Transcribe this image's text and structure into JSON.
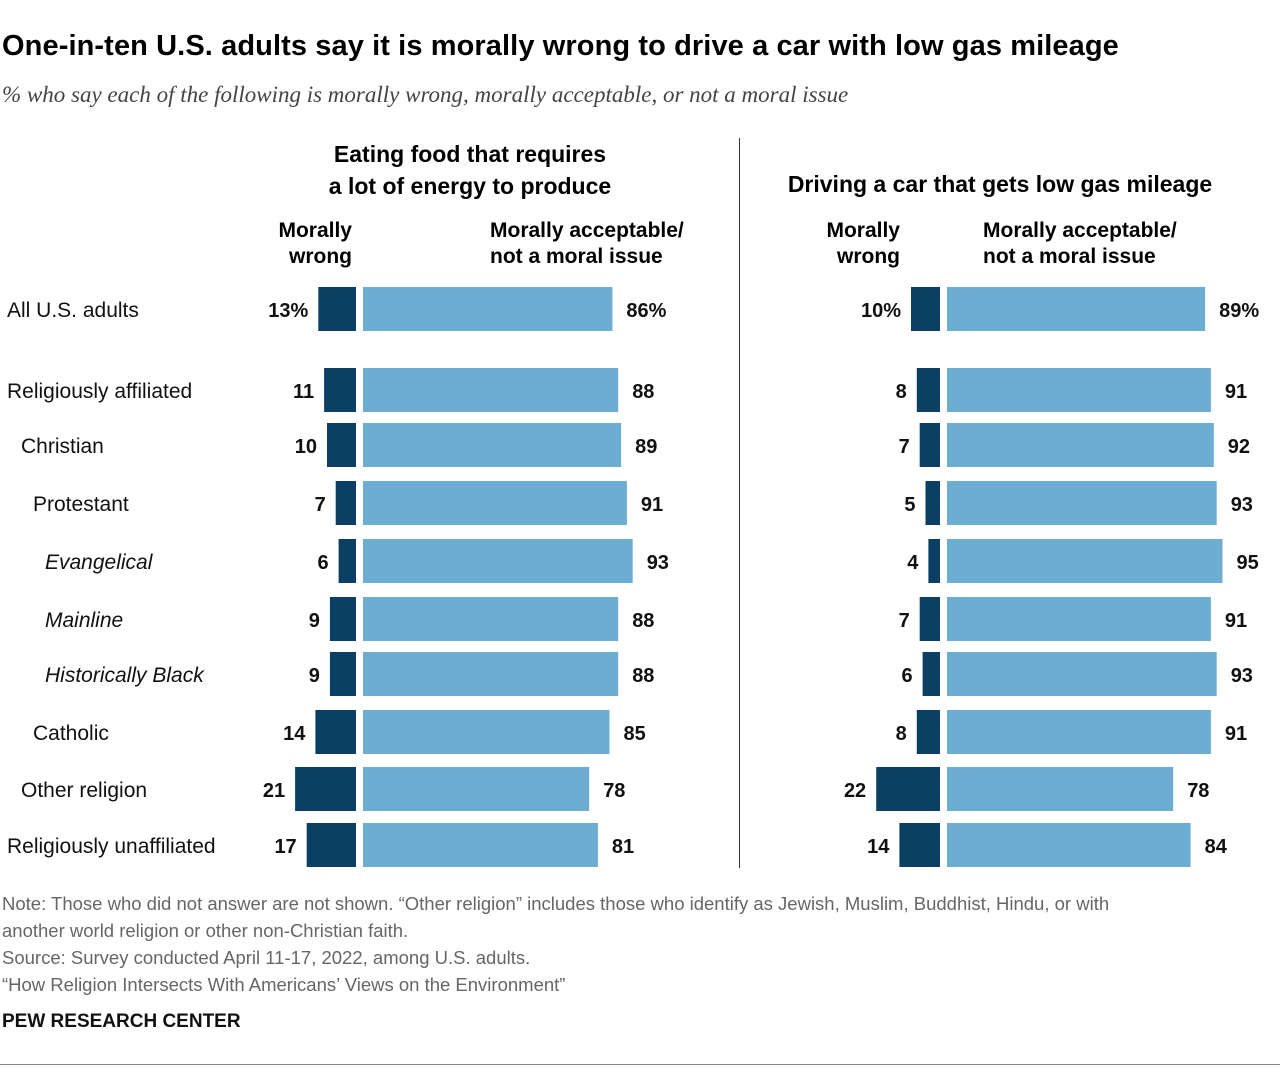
{
  "title": "One-in-ten U.S. adults say it is morally wrong to drive a car with low gas mileage",
  "subtitle": "% who say each of the following is morally wrong, morally acceptable, or not a moral issue",
  "panels": [
    {
      "title_line1": "Eating food that requires",
      "title_line2": "a lot of energy to produce",
      "head_wrong_1": "Morally",
      "head_wrong_2": "wrong",
      "head_ok_1": "Morally acceptable/",
      "head_ok_2": "not a moral issue"
    },
    {
      "title_line1": "Driving a car that gets low gas mileage",
      "title_line2": "",
      "head_wrong_1": "Morally",
      "head_wrong_2": "wrong",
      "head_ok_1": "Morally acceptable/",
      "head_ok_2": "not a moral issue"
    }
  ],
  "colors": {
    "wrong": "#0b4064",
    "acceptable": "#6dadd1"
  },
  "chart_data": {
    "type": "bar",
    "categories": [
      "All U.S. adults",
      "Religiously affiliated",
      "Christian",
      "Protestant",
      "Evangelical",
      "Mainline",
      "Historically Black",
      "Catholic",
      "Other religion",
      "Religiously unaffiliated"
    ],
    "panels": [
      {
        "title": "Eating food that requires a lot of energy to produce",
        "series": [
          {
            "name": "Morally wrong",
            "values": [
              13,
              11,
              10,
              7,
              6,
              9,
              9,
              14,
              21,
              17
            ]
          },
          {
            "name": "Morally acceptable/not a moral issue",
            "values": [
              86,
              88,
              89,
              91,
              93,
              88,
              88,
              85,
              78,
              81
            ]
          }
        ]
      },
      {
        "title": "Driving a car that gets low gas mileage",
        "series": [
          {
            "name": "Morally wrong",
            "values": [
              10,
              8,
              7,
              5,
              4,
              7,
              6,
              8,
              22,
              14
            ]
          },
          {
            "name": "Morally acceptable/not a moral issue",
            "values": [
              89,
              91,
              92,
              93,
              95,
              91,
              93,
              91,
              78,
              84
            ]
          }
        ]
      }
    ],
    "value_labels": {
      "panel1_wrong": [
        "13%",
        "11",
        "10",
        "7",
        "6",
        "9",
        "9",
        "14",
        "21",
        "17"
      ],
      "panel1_ok": [
        "86%",
        "88",
        "89",
        "91",
        "93",
        "88",
        "88",
        "85",
        "78",
        "81"
      ],
      "panel2_wrong": [
        "10%",
        "8",
        "7",
        "5",
        "4",
        "7",
        "6",
        "8",
        "22",
        "14"
      ],
      "panel2_ok": [
        "89%",
        "91",
        "92",
        "93",
        "95",
        "91",
        "93",
        "91",
        "78",
        "84"
      ]
    }
  },
  "notes": [
    "Note: Those who did not answer are not shown. “Other religion” includes those who identify as Jewish, Muslim, Buddhist, Hindu, or with",
    "another world religion or other non-Christian faith.",
    "Source: Survey conducted April 11-17, 2022, among U.S. adults.",
    "“How Religion Intersects With Americans’ Views on the Environment”"
  ],
  "brand": "PEW RESEARCH CENTER"
}
